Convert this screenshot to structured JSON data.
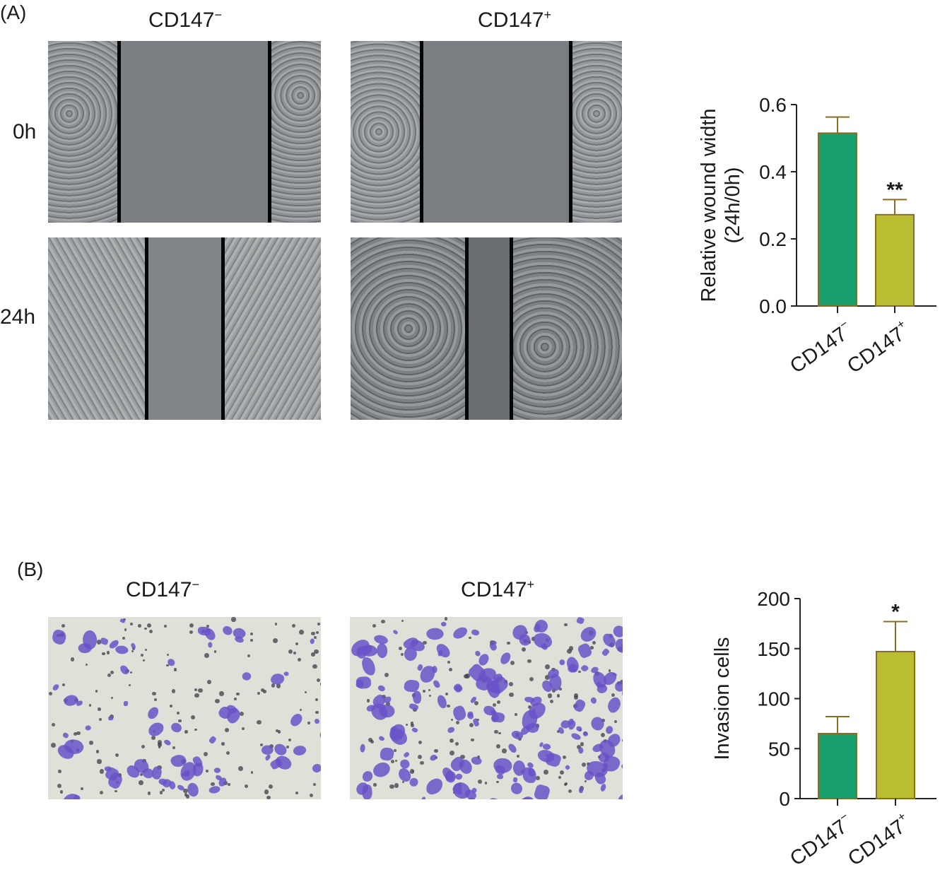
{
  "panel_a": {
    "label": "(A)",
    "columns": [
      "CD147",
      "CD147"
    ],
    "column_sup": [
      "−",
      "+"
    ],
    "rows": [
      "0h",
      "24h"
    ],
    "chart_data": {
      "type": "bar",
      "categories": [
        "CD147−",
        "CD147+"
      ],
      "category_base": [
        "CD147",
        "CD147"
      ],
      "category_sup": [
        "−",
        "+"
      ],
      "values": [
        0.515,
        0.272
      ],
      "errors": [
        0.048,
        0.045
      ],
      "significance": [
        "",
        "**"
      ],
      "ylabel_line1": "Relative wound width",
      "ylabel_line2": "(24h/0h)",
      "ylim": [
        0,
        0.6
      ],
      "yticks": [
        "0.0",
        "0.2",
        "0.4",
        "0.6"
      ],
      "ytick_values": [
        0,
        0.2,
        0.4,
        0.6
      ],
      "colors": [
        "#1a9e6e",
        "#b8bd32"
      ]
    }
  },
  "panel_b": {
    "label": "(B)",
    "columns": [
      "CD147",
      "CD147"
    ],
    "column_sup": [
      "−",
      "+"
    ],
    "chart_data": {
      "type": "bar",
      "categories": [
        "CD147−",
        "CD147+"
      ],
      "category_base": [
        "CD147",
        "CD147"
      ],
      "category_sup": [
        "−",
        "+"
      ],
      "values": [
        65,
        147
      ],
      "errors": [
        17,
        30
      ],
      "significance": [
        "",
        "*"
      ],
      "ylabel": "Invasion cells",
      "ylim": [
        0,
        200
      ],
      "yticks": [
        "0",
        "50",
        "100",
        "150",
        "200"
      ],
      "ytick_values": [
        0,
        50,
        100,
        150,
        200
      ],
      "colors": [
        "#1a9e6e",
        "#b8bd32"
      ]
    }
  }
}
